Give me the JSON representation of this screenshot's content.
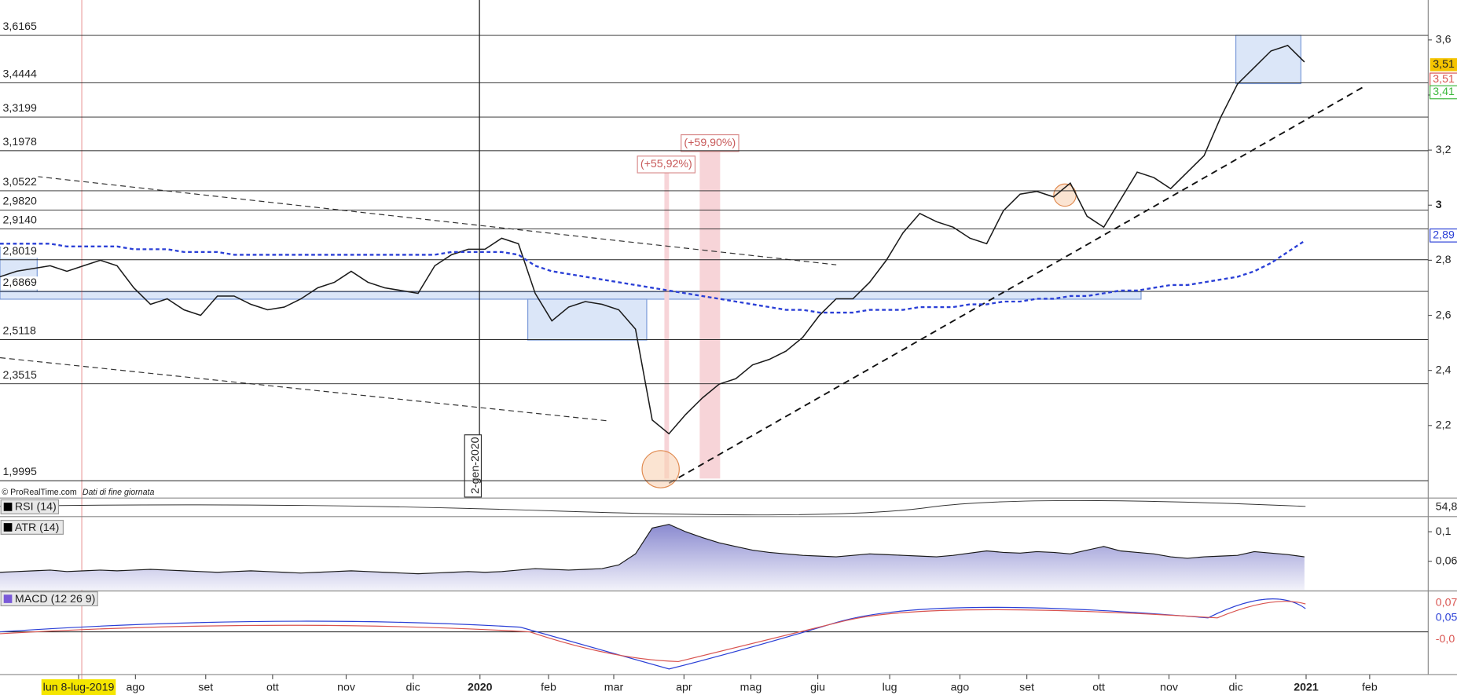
{
  "chart_data": {
    "type": "line",
    "x": [
      0,
      1,
      2,
      3,
      4,
      5,
      6,
      7,
      8,
      9,
      10,
      11,
      12,
      13,
      14,
      15,
      16,
      17,
      18,
      19,
      20,
      21,
      22,
      23,
      24,
      25,
      26,
      27,
      28,
      29,
      30,
      31,
      32,
      33,
      34,
      35,
      36,
      37,
      38,
      39,
      40,
      41,
      42,
      43,
      44,
      45,
      46,
      47,
      48,
      49,
      50,
      51,
      52,
      53,
      54,
      55,
      56,
      57,
      58,
      59,
      60,
      61,
      62,
      63,
      64,
      65,
      66,
      67,
      68,
      69,
      70,
      71,
      72,
      73,
      74,
      75,
      76,
      77,
      78
    ],
    "series": [
      {
        "color": "#1a1a1a",
        "values": [
          2.74,
          2.76,
          2.77,
          2.78,
          2.76,
          2.78,
          2.8,
          2.78,
          2.7,
          2.64,
          2.66,
          2.62,
          2.6,
          2.67,
          2.67,
          2.64,
          2.62,
          2.63,
          2.66,
          2.7,
          2.72,
          2.76,
          2.72,
          2.7,
          2.69,
          2.68,
          2.78,
          2.82,
          2.84,
          2.84,
          2.88,
          2.86,
          2.68,
          2.58,
          2.63,
          2.65,
          2.64,
          2.62,
          2.55,
          2.22,
          2.17,
          2.24,
          2.3,
          2.35,
          2.37,
          2.42,
          2.44,
          2.47,
          2.52,
          2.6,
          2.66,
          2.66,
          2.72,
          2.8,
          2.9,
          2.97,
          2.94,
          2.92,
          2.88,
          2.86,
          2.98,
          3.04,
          3.05,
          3.03,
          3.08,
          2.96,
          2.92,
          3.02,
          3.12,
          3.1,
          3.06,
          3.12,
          3.18,
          3.32,
          3.44,
          3.5,
          3.56,
          3.58,
          3.52
        ]
      },
      {
        "color": "#2a3fd6",
        "dashed": true,
        "values": [
          2.86,
          2.86,
          2.86,
          2.86,
          2.85,
          2.85,
          2.85,
          2.85,
          2.84,
          2.84,
          2.84,
          2.83,
          2.83,
          2.83,
          2.82,
          2.82,
          2.82,
          2.82,
          2.82,
          2.82,
          2.82,
          2.82,
          2.82,
          2.82,
          2.82,
          2.82,
          2.82,
          2.83,
          2.83,
          2.83,
          2.83,
          2.82,
          2.78,
          2.76,
          2.75,
          2.74,
          2.73,
          2.72,
          2.71,
          2.7,
          2.69,
          2.68,
          2.67,
          2.66,
          2.65,
          2.64,
          2.63,
          2.62,
          2.62,
          2.61,
          2.61,
          2.61,
          2.62,
          2.62,
          2.62,
          2.63,
          2.63,
          2.63,
          2.64,
          2.64,
          2.65,
          2.65,
          2.66,
          2.66,
          2.67,
          2.67,
          2.68,
          2.69,
          2.69,
          2.7,
          2.71,
          2.71,
          2.72,
          2.73,
          2.74,
          2.76,
          2.79,
          2.83,
          2.87
        ]
      }
    ],
    "xlim": [
      0,
      85.4
    ],
    "xticks": [
      {
        "value": 4.7,
        "label": "lun 8-lug-2019"
      },
      {
        "value": 8.1,
        "label": "ago"
      },
      {
        "value": 12.3,
        "label": "set"
      },
      {
        "value": 16.3,
        "label": "ott"
      },
      {
        "value": 20.7,
        "label": "nov"
      },
      {
        "value": 24.7,
        "label": "dic"
      },
      {
        "value": 28.7,
        "label": "2020"
      },
      {
        "value": 32.8,
        "label": "feb"
      },
      {
        "value": 36.7,
        "label": "mar"
      },
      {
        "value": 40.9,
        "label": "apr"
      },
      {
        "value": 44.9,
        "label": "mag"
      },
      {
        "value": 48.9,
        "label": "giu"
      },
      {
        "value": 53.2,
        "label": "lug"
      },
      {
        "value": 57.4,
        "label": "ago"
      },
      {
        "value": 61.4,
        "label": "set"
      },
      {
        "value": 65.7,
        "label": "ott"
      },
      {
        "value": 69.9,
        "label": "nov"
      },
      {
        "value": 73.9,
        "label": "dic"
      },
      {
        "value": 78.1,
        "label": "2021"
      },
      {
        "value": 81.9,
        "label": "feb"
      }
    ],
    "ylim": [
      1.94,
      3.745
    ],
    "yticks": [
      {
        "value": 2.2,
        "label": "2,2"
      },
      {
        "value": 2.4,
        "label": "2,4"
      },
      {
        "value": 2.6,
        "label": "2,6"
      },
      {
        "value": 2.8,
        "label": "2,8"
      },
      3,
      {
        "value": 3.2,
        "label": "3,2"
      },
      {
        "value": 3.4,
        "label": "3,4"
      },
      {
        "value": 3.6,
        "label": "3,6"
      }
    ],
    "levels": [
      {
        "value": 3.6165,
        "label": "3,6165"
      },
      {
        "value": 3.4444,
        "label": "3,4444"
      },
      {
        "value": 3.3199,
        "label": "3,3199"
      },
      {
        "value": 3.1978,
        "label": "3,1978"
      },
      {
        "value": 3.0522,
        "label": "3,0522"
      },
      {
        "value": 2.982,
        "label": "2,9820"
      },
      {
        "value": 2.914,
        "label": "2,9140"
      },
      {
        "value": 2.8019,
        "label": "2,8019"
      },
      {
        "value": 2.6869,
        "label": "2,6869"
      },
      {
        "value": 2.5118,
        "label": "2,5118"
      },
      {
        "value": 2.3515,
        "label": "2,3515"
      },
      {
        "value": 1.9995,
        "label": "1,9995"
      }
    ],
    "last_labels": [
      {
        "value": 3.51,
        "label": "3,51",
        "color": "#f5c400"
      },
      {
        "value": 3.51,
        "label": "3,51",
        "color": "#d9534f"
      },
      {
        "value": 3.41,
        "label": "3,41",
        "color": "#3cb83c"
      },
      {
        "value": 2.89,
        "label": "2,89",
        "color": "#2a3fd6"
      }
    ],
    "annotations": [
      "(+55,92%)",
      "(+59,90%)",
      "2-gen-2020"
    ],
    "credit": "© ProRealTime.com",
    "credit_note": "Dati di fine giornata",
    "rsi": {
      "title": "RSI (14)",
      "last": "54,8"
    },
    "atr": {
      "title": "ATR (14)",
      "color": "#1a1a1a",
      "values": [
        0.045,
        0.046,
        0.047,
        0.048,
        0.046,
        0.047,
        0.048,
        0.047,
        0.048,
        0.049,
        0.048,
        0.047,
        0.046,
        0.045,
        0.046,
        0.047,
        0.046,
        0.045,
        0.044,
        0.045,
        0.046,
        0.047,
        0.046,
        0.045,
        0.044,
        0.043,
        0.044,
        0.045,
        0.046,
        0.045,
        0.046,
        0.048,
        0.05,
        0.049,
        0.048,
        0.049,
        0.05,
        0.055,
        0.07,
        0.105,
        0.11,
        0.1,
        0.092,
        0.085,
        0.08,
        0.075,
        0.072,
        0.07,
        0.068,
        0.067,
        0.066,
        0.068,
        0.07,
        0.069,
        0.068,
        0.067,
        0.066,
        0.068,
        0.071,
        0.074,
        0.072,
        0.071,
        0.073,
        0.072,
        0.07,
        0.075,
        0.08,
        0.074,
        0.072,
        0.07,
        0.066,
        0.064,
        0.066,
        0.067,
        0.068,
        0.073,
        0.071,
        0.069,
        0.066
      ],
      "ylim": [
        0.021,
        0.118
      ],
      "yticks": [
        {
          "value": 0.1,
          "label": "0,1"
        },
        {
          "value": 0.06,
          "label": "0,06"
        }
      ]
    },
    "macd": {
      "title": "MACD (12 26 9)",
      "last": [
        "0,07",
        "0,05",
        "-0,0"
      ]
    }
  }
}
